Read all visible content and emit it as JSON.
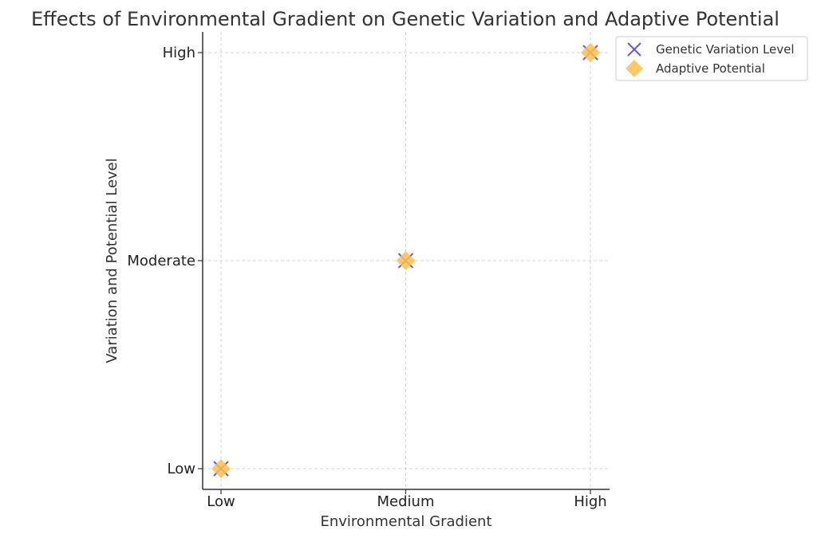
{
  "chart_data": {
    "type": "scatter",
    "title": "Effects of Environmental Gradient on Genetic Variation and Adaptive Potential",
    "xlabel": "Environmental Gradient",
    "ylabel": "Variation and Potential Level",
    "x_categories": [
      "Low",
      "Medium",
      "High"
    ],
    "y_categories": [
      "Low",
      "Moderate",
      "High"
    ],
    "grid": true,
    "legend_position": "outside-top-right",
    "series": [
      {
        "name": "Genetic Variation Level",
        "marker": "x",
        "color": "#6a5acd",
        "points": [
          {
            "x": "Low",
            "y": "Low"
          },
          {
            "x": "Medium",
            "y": "Moderate"
          },
          {
            "x": "High",
            "y": "High"
          }
        ]
      },
      {
        "name": "Adaptive Potential",
        "marker": "diamond",
        "color": "#ffc04d",
        "points": [
          {
            "x": "Low",
            "y": "Low"
          },
          {
            "x": "Medium",
            "y": "Moderate"
          },
          {
            "x": "High",
            "y": "High"
          }
        ]
      }
    ]
  }
}
